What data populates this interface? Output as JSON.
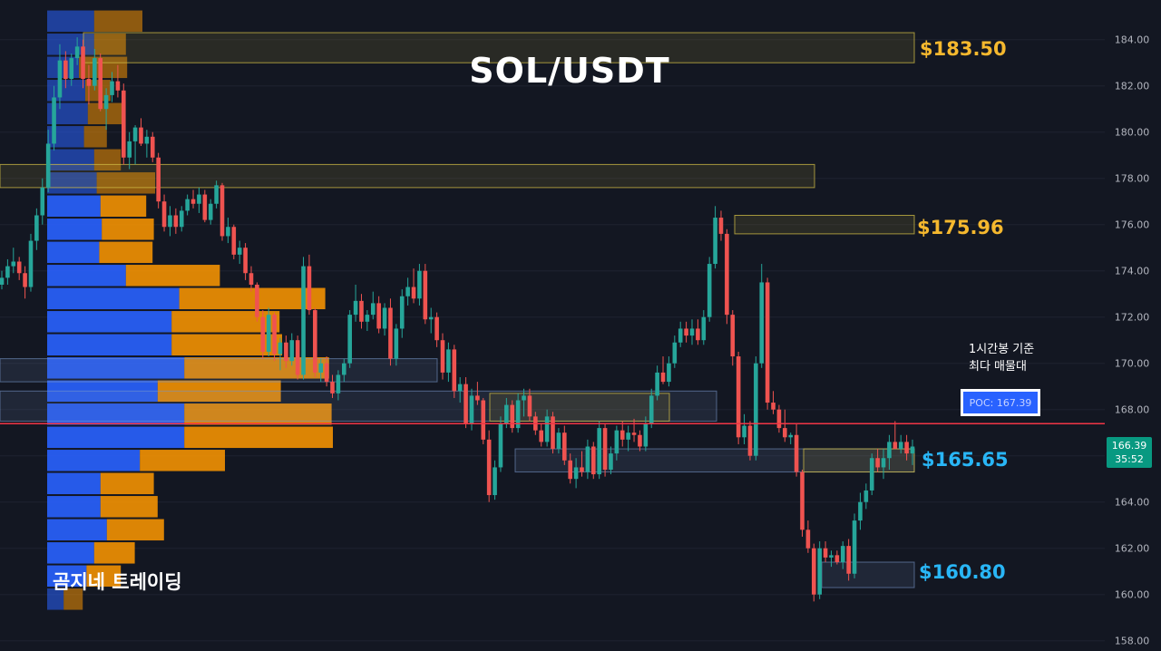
{
  "title": "SOL/USDT",
  "watermark": "곰지네 트레이딩",
  "note": {
    "line1": "1시간봉 기준",
    "line2": "최다 매물대"
  },
  "poc_label": "POC: 167.39",
  "current_price": {
    "price": "166.39",
    "countdown": "35:52"
  },
  "levels": [
    {
      "text": "$183.50",
      "color": "#f5b82e"
    },
    {
      "text": "$175.96",
      "color": "#f5b82e"
    },
    {
      "text": "$165.65",
      "color": "#29b6f6"
    },
    {
      "text": "$160.80",
      "color": "#29b6f6"
    }
  ],
  "colors": {
    "background": "#131722",
    "up": "#26a69a",
    "down": "#ef5350",
    "vp_up": "#2962ff",
    "vp_down": "#ff9800",
    "poc_line": "#f23645"
  },
  "chart_data": {
    "type": "candlestick",
    "ylim": [
      157.5,
      185.3
    ],
    "y_ticks": [
      "158.00",
      "160.00",
      "162.00",
      "164.00",
      "166.00",
      "168.00",
      "170.00",
      "172.00",
      "174.00",
      "176.00",
      "178.00",
      "180.00",
      "182.00",
      "184.00"
    ],
    "poc": 167.39,
    "candles": [
      [
        173.4,
        174.0,
        173.2,
        173.7
      ],
      [
        173.7,
        174.5,
        173.4,
        174.2
      ],
      [
        174.2,
        175.0,
        173.9,
        174.4
      ],
      [
        174.4,
        174.6,
        173.6,
        173.9
      ],
      [
        173.9,
        174.2,
        172.8,
        173.3
      ],
      [
        173.3,
        175.6,
        173.1,
        175.3
      ],
      [
        175.3,
        176.7,
        174.9,
        176.4
      ],
      [
        176.4,
        178.0,
        176.0,
        177.6
      ],
      [
        177.6,
        180.1,
        177.4,
        179.5
      ],
      [
        179.5,
        182.0,
        179.2,
        181.5
      ],
      [
        181.5,
        183.8,
        181.0,
        183.1
      ],
      [
        183.1,
        183.5,
        181.9,
        182.3
      ],
      [
        182.3,
        183.4,
        182.0,
        183.2
      ],
      [
        183.2,
        184.1,
        182.9,
        183.7
      ],
      [
        183.7,
        184.0,
        181.9,
        182.3
      ],
      [
        182.3,
        182.9,
        181.2,
        182.0
      ],
      [
        182.0,
        183.6,
        181.8,
        183.2
      ],
      [
        183.2,
        183.4,
        180.9,
        181.0
      ],
      [
        181.0,
        181.9,
        180.1,
        181.6
      ],
      [
        181.6,
        182.6,
        181.3,
        182.2
      ],
      [
        182.2,
        182.9,
        181.5,
        181.8
      ],
      [
        181.8,
        182.1,
        178.6,
        178.9
      ],
      [
        178.9,
        180.0,
        178.4,
        179.6
      ],
      [
        179.6,
        180.3,
        178.6,
        180.2
      ],
      [
        180.2,
        180.6,
        179.4,
        179.5
      ],
      [
        179.5,
        180.1,
        178.9,
        179.8
      ],
      [
        179.8,
        180.0,
        178.7,
        178.9
      ],
      [
        178.9,
        179.1,
        176.7,
        177.0
      ],
      [
        177.0,
        177.3,
        175.7,
        175.9
      ],
      [
        175.9,
        176.8,
        175.5,
        176.4
      ],
      [
        176.4,
        176.7,
        175.6,
        175.9
      ],
      [
        175.9,
        176.8,
        175.7,
        176.6
      ],
      [
        176.6,
        177.3,
        176.4,
        177.1
      ],
      [
        177.1,
        177.5,
        176.7,
        176.9
      ],
      [
        176.9,
        177.6,
        176.5,
        177.3
      ],
      [
        177.3,
        177.5,
        176.1,
        176.2
      ],
      [
        176.2,
        177.1,
        176.0,
        176.9
      ],
      [
        176.9,
        177.9,
        176.7,
        177.7
      ],
      [
        177.7,
        177.8,
        175.3,
        175.5
      ],
      [
        175.5,
        176.3,
        175.2,
        175.9
      ],
      [
        175.9,
        176.0,
        174.5,
        174.7
      ],
      [
        174.7,
        175.3,
        174.3,
        175.0
      ],
      [
        175.0,
        175.2,
        173.6,
        173.9
      ],
      [
        173.9,
        174.2,
        173.1,
        173.4
      ],
      [
        173.4,
        173.5,
        171.8,
        172.0
      ],
      [
        172.0,
        172.3,
        170.2,
        170.5
      ],
      [
        170.5,
        172.4,
        170.3,
        172.1
      ],
      [
        172.1,
        172.2,
        170.1,
        170.4
      ],
      [
        170.4,
        171.1,
        169.7,
        170.9
      ],
      [
        170.9,
        171.2,
        169.8,
        170.1
      ],
      [
        170.1,
        171.3,
        169.9,
        171.0
      ],
      [
        171.0,
        171.2,
        169.3,
        169.5
      ],
      [
        169.5,
        174.6,
        169.3,
        174.2
      ],
      [
        174.2,
        174.7,
        172.1,
        172.3
      ],
      [
        172.3,
        172.4,
        169.4,
        169.6
      ],
      [
        169.6,
        170.2,
        169.2,
        170.0
      ],
      [
        170.0,
        170.3,
        169.0,
        169.2
      ],
      [
        169.2,
        169.5,
        168.5,
        168.7
      ],
      [
        168.7,
        169.7,
        168.4,
        169.5
      ],
      [
        169.5,
        170.2,
        169.2,
        170.0
      ],
      [
        170.0,
        172.3,
        169.8,
        172.1
      ],
      [
        172.1,
        173.4,
        171.8,
        172.7
      ],
      [
        172.7,
        173.0,
        171.5,
        171.8
      ],
      [
        171.8,
        172.3,
        171.4,
        172.1
      ],
      [
        172.1,
        173.1,
        171.9,
        172.6
      ],
      [
        172.6,
        172.9,
        171.3,
        171.5
      ],
      [
        171.5,
        172.6,
        171.2,
        172.4
      ],
      [
        172.4,
        172.8,
        169.9,
        170.2
      ],
      [
        170.2,
        171.7,
        169.9,
        171.5
      ],
      [
        171.5,
        173.2,
        171.1,
        172.9
      ],
      [
        172.9,
        173.7,
        172.5,
        173.3
      ],
      [
        173.3,
        174.1,
        172.6,
        172.8
      ],
      [
        172.8,
        174.3,
        172.5,
        174.0
      ],
      [
        174.0,
        174.3,
        171.7,
        171.9
      ],
      [
        171.9,
        172.4,
        171.3,
        172.0
      ],
      [
        172.0,
        172.2,
        170.7,
        171.0
      ],
      [
        171.0,
        171.3,
        169.3,
        169.6
      ],
      [
        169.6,
        170.9,
        169.2,
        170.6
      ],
      [
        170.6,
        170.8,
        168.5,
        168.8
      ],
      [
        168.8,
        169.4,
        168.3,
        169.1
      ],
      [
        169.1,
        169.4,
        167.2,
        167.4
      ],
      [
        167.4,
        168.9,
        167.1,
        168.6
      ],
      [
        168.6,
        169.2,
        168.2,
        168.4
      ],
      [
        168.4,
        168.5,
        166.5,
        166.7
      ],
      [
        166.7,
        167.1,
        164.0,
        164.3
      ],
      [
        164.3,
        165.8,
        164.1,
        165.5
      ],
      [
        165.5,
        167.7,
        165.3,
        167.4
      ],
      [
        167.4,
        168.5,
        167.2,
        168.2
      ],
      [
        168.2,
        168.4,
        167.0,
        167.2
      ],
      [
        167.2,
        168.7,
        167.0,
        168.4
      ],
      [
        168.4,
        168.9,
        167.7,
        168.6
      ],
      [
        168.6,
        168.9,
        167.5,
        167.7
      ],
      [
        167.7,
        167.9,
        166.9,
        167.1
      ],
      [
        167.1,
        167.4,
        166.4,
        166.6
      ],
      [
        166.6,
        168.0,
        166.4,
        167.7
      ],
      [
        167.7,
        167.9,
        166.1,
        166.3
      ],
      [
        166.3,
        167.2,
        166.1,
        167.0
      ],
      [
        167.0,
        167.3,
        165.6,
        165.8
      ],
      [
        165.8,
        166.1,
        164.8,
        165.0
      ],
      [
        165.0,
        165.9,
        164.6,
        165.5
      ],
      [
        165.5,
        166.2,
        165.1,
        165.3
      ],
      [
        165.3,
        166.7,
        165.0,
        166.4
      ],
      [
        166.4,
        166.6,
        165.0,
        165.2
      ],
      [
        165.2,
        167.5,
        165.0,
        167.2
      ],
      [
        167.2,
        167.4,
        165.1,
        165.4
      ],
      [
        165.4,
        166.4,
        165.2,
        166.1
      ],
      [
        166.1,
        167.3,
        165.8,
        167.1
      ],
      [
        167.1,
        167.5,
        166.4,
        166.7
      ],
      [
        166.7,
        167.3,
        166.2,
        167.0
      ],
      [
        167.0,
        167.6,
        166.6,
        166.9
      ],
      [
        166.9,
        167.1,
        166.2,
        166.4
      ],
      [
        166.4,
        167.7,
        166.2,
        167.4
      ],
      [
        167.4,
        168.9,
        167.2,
        168.6
      ],
      [
        168.6,
        169.9,
        168.4,
        169.6
      ],
      [
        169.6,
        170.3,
        169.1,
        169.2
      ],
      [
        169.2,
        170.3,
        169.0,
        170.0
      ],
      [
        170.0,
        171.2,
        169.8,
        170.9
      ],
      [
        170.9,
        171.8,
        170.7,
        171.5
      ],
      [
        171.5,
        171.8,
        170.9,
        171.2
      ],
      [
        171.2,
        171.9,
        170.8,
        171.5
      ],
      [
        171.5,
        171.9,
        170.8,
        171.0
      ],
      [
        171.0,
        172.3,
        170.8,
        172.0
      ],
      [
        172.0,
        174.6,
        171.8,
        174.3
      ],
      [
        174.3,
        176.8,
        174.1,
        176.3
      ],
      [
        176.3,
        176.6,
        175.3,
        175.6
      ],
      [
        175.6,
        175.8,
        171.7,
        172.1
      ],
      [
        172.1,
        172.3,
        169.9,
        170.3
      ],
      [
        170.3,
        170.5,
        166.5,
        166.8
      ],
      [
        166.8,
        167.8,
        166.5,
        167.3
      ],
      [
        167.3,
        167.5,
        165.8,
        166.0
      ],
      [
        166.0,
        170.3,
        165.8,
        170.0
      ],
      [
        170.0,
        174.3,
        169.8,
        173.5
      ],
      [
        173.5,
        173.7,
        168.0,
        168.3
      ],
      [
        168.3,
        168.8,
        167.8,
        168.0
      ],
      [
        168.0,
        168.2,
        167.0,
        167.2
      ],
      [
        167.2,
        168.0,
        166.6,
        166.8
      ],
      [
        166.8,
        167.0,
        166.5,
        166.9
      ],
      [
        166.9,
        167.4,
        165.1,
        165.3
      ],
      [
        165.3,
        165.4,
        162.5,
        162.8
      ],
      [
        162.8,
        163.2,
        161.8,
        162.0
      ],
      [
        162.0,
        162.2,
        159.7,
        160.0
      ],
      [
        160.0,
        162.3,
        159.8,
        162.0
      ],
      [
        162.0,
        162.3,
        161.4,
        161.6
      ],
      [
        161.6,
        161.9,
        161.2,
        161.7
      ],
      [
        161.7,
        161.9,
        161.3,
        161.4
      ],
      [
        161.4,
        162.3,
        161.1,
        162.1
      ],
      [
        162.1,
        162.4,
        160.6,
        160.9
      ],
      [
        160.9,
        163.5,
        160.7,
        163.2
      ],
      [
        163.2,
        164.4,
        162.8,
        164.0
      ],
      [
        164.0,
        164.8,
        163.7,
        164.5
      ],
      [
        164.5,
        166.1,
        164.3,
        165.9
      ],
      [
        165.9,
        166.3,
        165.3,
        165.5
      ],
      [
        165.5,
        166.3,
        165.0,
        165.9
      ],
      [
        165.9,
        166.9,
        165.4,
        166.6
      ],
      [
        166.6,
        167.5,
        166.3,
        166.3
      ],
      [
        166.3,
        166.9,
        166.1,
        166.6
      ],
      [
        166.6,
        166.9,
        165.8,
        166.1
      ],
      [
        166.1,
        166.7,
        165.6,
        166.4
      ]
    ],
    "vp_rows": [
      [
        184.3,
        185.3,
        0.37,
        0.75
      ],
      [
        183.3,
        184.3,
        0.37,
        0.62
      ],
      [
        182.3,
        183.3,
        0.25,
        0.63
      ],
      [
        181.3,
        182.3,
        0.3,
        0.5
      ],
      [
        180.3,
        181.3,
        0.32,
        0.6
      ],
      [
        179.3,
        180.3,
        0.29,
        0.47
      ],
      [
        178.3,
        179.3,
        0.37,
        0.58
      ],
      [
        177.3,
        178.3,
        0.39,
        0.85
      ],
      [
        176.3,
        177.3,
        0.42,
        0.78
      ],
      [
        175.3,
        176.3,
        0.43,
        0.84
      ],
      [
        174.3,
        175.3,
        0.41,
        0.83
      ],
      [
        173.3,
        174.3,
        0.62,
        1.36
      ],
      [
        172.3,
        173.3,
        1.04,
        2.19
      ],
      [
        171.3,
        172.3,
        0.98,
        1.83
      ],
      [
        170.3,
        171.3,
        0.98,
        1.85
      ],
      [
        169.3,
        170.3,
        1.08,
        2.22
      ],
      [
        168.3,
        169.3,
        0.87,
        1.84
      ],
      [
        167.3,
        168.3,
        1.08,
        2.24
      ],
      [
        166.3,
        167.3,
        1.08,
        2.25
      ],
      [
        165.3,
        166.3,
        0.73,
        1.4
      ],
      [
        164.3,
        165.3,
        0.42,
        0.84
      ],
      [
        163.3,
        164.3,
        0.42,
        0.87
      ],
      [
        162.3,
        163.3,
        0.47,
        0.92
      ],
      [
        161.3,
        162.3,
        0.37,
        0.69
      ],
      [
        160.3,
        161.3,
        0.31,
        0.58
      ],
      [
        159.3,
        160.3,
        0.13,
        0.28
      ]
    ],
    "zones": [
      {
        "y1": 183.0,
        "y2": 184.3,
        "kind": "yellow"
      },
      {
        "y1": 177.6,
        "y2": 178.6,
        "kind": "yellow"
      },
      {
        "y1": 175.6,
        "y2": 176.4,
        "kind": "yellow"
      },
      {
        "y1": 169.2,
        "y2": 170.2,
        "kind": "blue"
      },
      {
        "y1": 167.5,
        "y2": 168.8,
        "kind": "blue"
      },
      {
        "y1": 167.5,
        "y2": 168.7,
        "kind": "yellow"
      },
      {
        "y1": 165.3,
        "y2": 166.3,
        "kind": "blue"
      },
      {
        "y1": 165.3,
        "y2": 166.3,
        "kind": "yellow"
      },
      {
        "y1": 160.3,
        "y2": 161.4,
        "kind": "blue"
      }
    ]
  }
}
